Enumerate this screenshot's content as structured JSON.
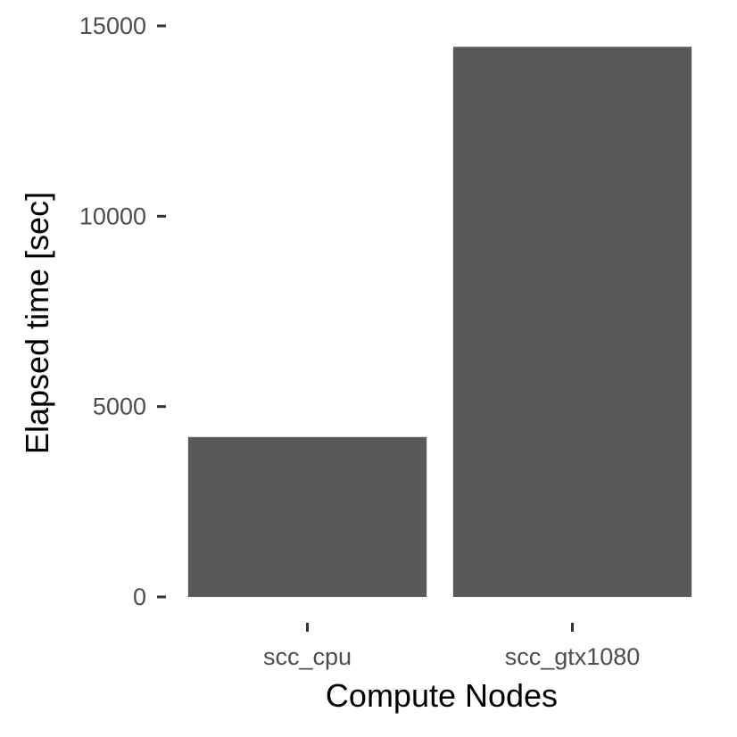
{
  "chart_data": {
    "type": "bar",
    "title": "",
    "xlabel": "Compute Nodes",
    "ylabel": "Elapsed time [sec]",
    "categories": [
      "scc_cpu",
      "scc_gtx1080"
    ],
    "values": [
      4200,
      14450
    ],
    "ylim": [
      0,
      15000
    ],
    "yticks": [
      0,
      5000,
      10000,
      15000
    ],
    "ytick_labels": [
      "0",
      "5000",
      "10000",
      "15000"
    ],
    "grid": false,
    "legend": "none",
    "bar_color": "#595959",
    "tick_color": "#333333",
    "tick_label_color": "#4d4d4d",
    "background": "#ffffff"
  }
}
